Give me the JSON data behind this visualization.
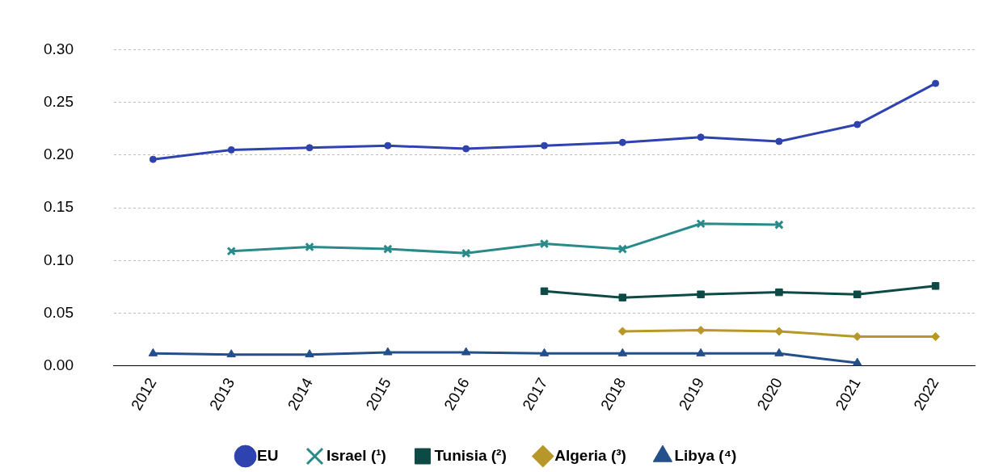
{
  "chart_data": {
    "type": "line",
    "categories": [
      "2012",
      "2013",
      "2014",
      "2015",
      "2016",
      "2017",
      "2018",
      "2019",
      "2020",
      "2021",
      "2022"
    ],
    "series": [
      {
        "name": "EU",
        "color": "#2e43b0",
        "marker": "circle",
        "values": [
          0.196,
          0.205,
          0.207,
          0.209,
          0.206,
          0.209,
          0.212,
          0.217,
          0.213,
          0.229,
          0.268
        ]
      },
      {
        "name": "Israel (¹)",
        "color": "#2a8a8a",
        "marker": "cross",
        "values": [
          null,
          0.109,
          0.113,
          0.111,
          0.107,
          0.116,
          0.111,
          0.135,
          0.134,
          null,
          null
        ]
      },
      {
        "name": "Tunisia (²)",
        "color": "#0e4a45",
        "marker": "square",
        "values": [
          null,
          null,
          null,
          null,
          null,
          0.071,
          0.065,
          0.068,
          0.07,
          0.068,
          0.076
        ]
      },
      {
        "name": "Algeria (³)",
        "color": "#b8972a",
        "marker": "diamond",
        "values": [
          null,
          null,
          null,
          null,
          null,
          null,
          0.033,
          0.034,
          0.033,
          0.028,
          0.028
        ]
      },
      {
        "name": "Libya (⁴)",
        "color": "#234f8a",
        "marker": "triangle",
        "values": [
          0.012,
          0.011,
          0.011,
          0.013,
          0.013,
          0.012,
          0.012,
          0.012,
          0.012,
          0.003,
          null
        ]
      }
    ],
    "ylim": [
      0,
      0.3
    ],
    "yticks": [
      {
        "value": 0,
        "label": "0.00"
      },
      {
        "value": 0.05,
        "label": "0.05"
      },
      {
        "value": 0.1,
        "label": "0.10"
      },
      {
        "value": 0.15,
        "label": "0.15"
      },
      {
        "value": 0.2,
        "label": "0.20"
      },
      {
        "value": 0.25,
        "label": "0.25"
      },
      {
        "value": 0.3,
        "label": "0.30"
      }
    ],
    "grid": "y",
    "legend": "bottom"
  }
}
